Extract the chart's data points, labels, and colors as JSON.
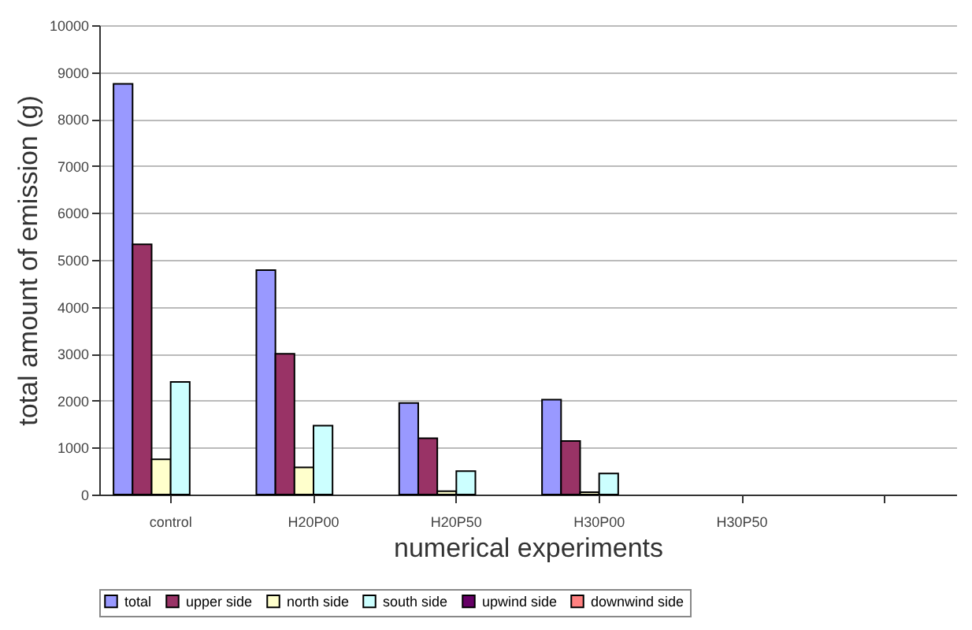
{
  "chart_data": {
    "type": "bar",
    "xlabel": "numerical experiments",
    "ylabel": "total amount of emission (g)",
    "categories": [
      "control",
      "H20P00",
      "H20P50",
      "H30P00",
      "H30P50",
      null
    ],
    "series": [
      {
        "name": "total",
        "color": "#9999ff",
        "values": [
          8750,
          4780,
          1950,
          2020,
          null,
          null
        ]
      },
      {
        "name": "upper side",
        "color": "#993366",
        "values": [
          5330,
          3000,
          1200,
          1140,
          null,
          null
        ]
      },
      {
        "name": "north side",
        "color": "#ffffcc",
        "values": [
          750,
          580,
          70,
          50,
          null,
          null
        ]
      },
      {
        "name": "south side",
        "color": "#ccffff",
        "values": [
          2400,
          1470,
          500,
          450,
          null,
          null
        ]
      },
      {
        "name": "upwind side",
        "color": "#660066",
        "values": [
          null,
          null,
          null,
          null,
          null,
          null
        ]
      },
      {
        "name": "downwind side",
        "color": "#ff8080",
        "values": [
          null,
          null,
          null,
          null,
          null,
          null
        ]
      }
    ],
    "ylim": [
      0,
      10000
    ],
    "yticks": [
      0,
      1000,
      2000,
      3000,
      4000,
      5000,
      6000,
      7000,
      8000,
      9000,
      10000
    ],
    "grid": "y",
    "legend": "bottom"
  }
}
